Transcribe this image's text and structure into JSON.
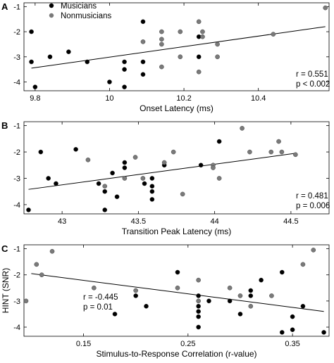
{
  "colors": {
    "musicians": "#000000",
    "nonmusicians": "#7a7a7a",
    "axis": "#000000",
    "line": "#000000"
  },
  "legend": {
    "musicians": "Musicians",
    "nonmusicians": "Nonmusicians"
  },
  "chart_data": [
    {
      "panel": "A",
      "type": "scatter",
      "xlabel": "Onset Latency (ms)",
      "ylabel": "",
      "xlim": [
        9.77,
        10.59
      ],
      "ylim": [
        -4.35,
        -0.85
      ],
      "xticks": [
        9.8,
        10,
        10.2,
        10.4
      ],
      "xticklabels": [
        "9.8",
        "10",
        "10.2",
        "10.4"
      ],
      "yticks": [
        -4,
        -3,
        -2,
        -1
      ],
      "yticklabels": [
        "-4",
        "-3",
        "-2",
        "-1"
      ],
      "stats": [
        "r = 0.551",
        "p < 0.002"
      ],
      "legend": true,
      "fit": {
        "x": [
          9.79,
          10.58
        ],
        "y": [
          -3.45,
          -1.8
        ]
      },
      "series": [
        {
          "name": "Musicians",
          "color_key": "musicians",
          "points": [
            [
              9.79,
              -2.0
            ],
            [
              9.79,
              -3.2
            ],
            [
              9.8,
              -4.2
            ],
            [
              9.84,
              -3.0
            ],
            [
              9.89,
              -2.8
            ],
            [
              9.94,
              -3.2
            ],
            [
              10.0,
              -4.0
            ],
            [
              10.04,
              -3.5
            ],
            [
              10.04,
              -3.2
            ],
            [
              10.04,
              -4.2
            ],
            [
              10.09,
              -1.6
            ],
            [
              10.09,
              -3.2
            ],
            [
              10.09,
              -3.7
            ],
            [
              10.24,
              -3.0
            ],
            [
              10.24,
              -2.2
            ]
          ]
        },
        {
          "name": "Nonmusicians",
          "color_key": "nonmusicians",
          "points": [
            [
              10.09,
              -2.4
            ],
            [
              10.14,
              -2.0
            ],
            [
              10.14,
              -2.3
            ],
            [
              10.14,
              -2.5
            ],
            [
              10.14,
              -3.4
            ],
            [
              10.19,
              -2.0
            ],
            [
              10.19,
              -3.0
            ],
            [
              10.24,
              -1.6
            ],
            [
              10.24,
              -3.6
            ],
            [
              10.25,
              -2.0
            ],
            [
              10.25,
              -2.2
            ],
            [
              10.29,
              -2.5
            ],
            [
              10.29,
              -3.0
            ],
            [
              10.44,
              -2.1
            ],
            [
              10.58,
              -1.05
            ]
          ]
        }
      ]
    },
    {
      "panel": "B",
      "type": "scatter",
      "xlabel": "Transition Peak Latency (ms)",
      "ylabel": "",
      "xlim": [
        42.75,
        44.75
      ],
      "ylim": [
        -4.35,
        -0.85
      ],
      "xticks": [
        43,
        43.5,
        44,
        44.5
      ],
      "xticklabels": [
        "43",
        "43.5",
        "44",
        "44.5"
      ],
      "yticks": [
        -4,
        -3,
        -2,
        -1
      ],
      "yticklabels": [
        "-4",
        "-3",
        "-2",
        "-1"
      ],
      "stats": [
        "r = 0.481",
        "p = 0.006"
      ],
      "legend": false,
      "fit": {
        "x": [
          42.78,
          44.53
        ],
        "y": [
          -3.42,
          -2.05
        ]
      },
      "series": [
        {
          "name": "Musicians",
          "color_key": "musicians",
          "points": [
            [
              42.78,
              -4.2
            ],
            [
              42.86,
              -2.0
            ],
            [
              42.91,
              -3.0
            ],
            [
              42.96,
              -3.2
            ],
            [
              43.09,
              -1.9
            ],
            [
              43.24,
              -3.2
            ],
            [
              43.28,
              -3.5
            ],
            [
              43.28,
              -4.2
            ],
            [
              43.33,
              -2.8
            ],
            [
              43.36,
              -3.7
            ],
            [
              43.41,
              -2.4
            ],
            [
              43.41,
              -2.6
            ],
            [
              43.54,
              -3.2
            ],
            [
              43.59,
              -3.0
            ],
            [
              43.59,
              -3.3
            ],
            [
              43.59,
              -3.5
            ],
            [
              43.59,
              -3.8
            ],
            [
              43.67,
              -2.5
            ],
            [
              43.91,
              -2.5
            ],
            [
              44.03,
              -1.6
            ]
          ]
        },
        {
          "name": "Nonmusicians",
          "color_key": "nonmusicians",
          "points": [
            [
              43.17,
              -2.3
            ],
            [
              43.28,
              -3.3
            ],
            [
              43.41,
              -3.0
            ],
            [
              43.48,
              -2.2
            ],
            [
              43.53,
              -3.0
            ],
            [
              43.67,
              -2.4
            ],
            [
              43.73,
              -2.0
            ],
            [
              43.79,
              -3.6
            ],
            [
              43.99,
              -2.5
            ],
            [
              43.99,
              -2.6
            ],
            [
              44.03,
              -3.0
            ],
            [
              44.18,
              -1.1
            ],
            [
              44.23,
              -2.0
            ],
            [
              44.37,
              -2.0
            ],
            [
              44.42,
              -1.6
            ],
            [
              44.44,
              -2.0
            ],
            [
              44.53,
              -2.1
            ]
          ]
        }
      ]
    },
    {
      "panel": "C",
      "type": "scatter",
      "xlabel": "Stimulus-to-Response Correlation (r-value)",
      "ylabel": "HINT (SNR)",
      "xlim": [
        0.093,
        0.385
      ],
      "ylim": [
        -4.35,
        -0.85
      ],
      "xticks": [
        0.15,
        0.25,
        0.35
      ],
      "xticklabels": [
        "0.15",
        "0.25",
        "0.35"
      ],
      "yticks": [
        -4,
        -3,
        -2,
        -1
      ],
      "yticklabels": [
        "-4",
        "-3",
        "-2",
        "-1"
      ],
      "stats": [
        "r = -0.445",
        "p = 0.01"
      ],
      "legend": false,
      "fit": {
        "x": [
          0.1,
          0.38
        ],
        "y": [
          -1.95,
          -3.4
        ]
      },
      "series": [
        {
          "name": "Musicians",
          "color_key": "musicians",
          "points": [
            [
              0.18,
              -3.5
            ],
            [
              0.2,
              -2.8
            ],
            [
              0.21,
              -3.2
            ],
            [
              0.24,
              -1.9
            ],
            [
              0.26,
              -2.8
            ],
            [
              0.26,
              -3.2
            ],
            [
              0.26,
              -3.4
            ],
            [
              0.26,
              -3.6
            ],
            [
              0.26,
              -4.0
            ],
            [
              0.27,
              -3.0
            ],
            [
              0.29,
              -3.0
            ],
            [
              0.3,
              -3.5
            ],
            [
              0.31,
              -2.6
            ],
            [
              0.31,
              -2.8
            ],
            [
              0.32,
              -2.2
            ],
            [
              0.34,
              -1.9
            ],
            [
              0.34,
              -4.2
            ],
            [
              0.35,
              -3.6
            ],
            [
              0.35,
              -4.1
            ],
            [
              0.36,
              -3.2
            ],
            [
              0.38,
              -4.2
            ]
          ]
        },
        {
          "name": "Nonmusicians",
          "color_key": "nonmusicians",
          "points": [
            [
              0.095,
              -3.0
            ],
            [
              0.105,
              -1.6
            ],
            [
              0.11,
              -2.0
            ],
            [
              0.12,
              -1.1
            ],
            [
              0.16,
              -2.5
            ],
            [
              0.2,
              -2.6
            ],
            [
              0.24,
              -2.5
            ],
            [
              0.26,
              -2.2
            ],
            [
              0.26,
              -3.0
            ],
            [
              0.29,
              -2.5
            ],
            [
              0.3,
              -2.8
            ],
            [
              0.31,
              -3.2
            ],
            [
              0.33,
              -2.8
            ],
            [
              0.36,
              -1.6
            ],
            [
              0.37,
              -1.05
            ]
          ]
        }
      ]
    }
  ]
}
